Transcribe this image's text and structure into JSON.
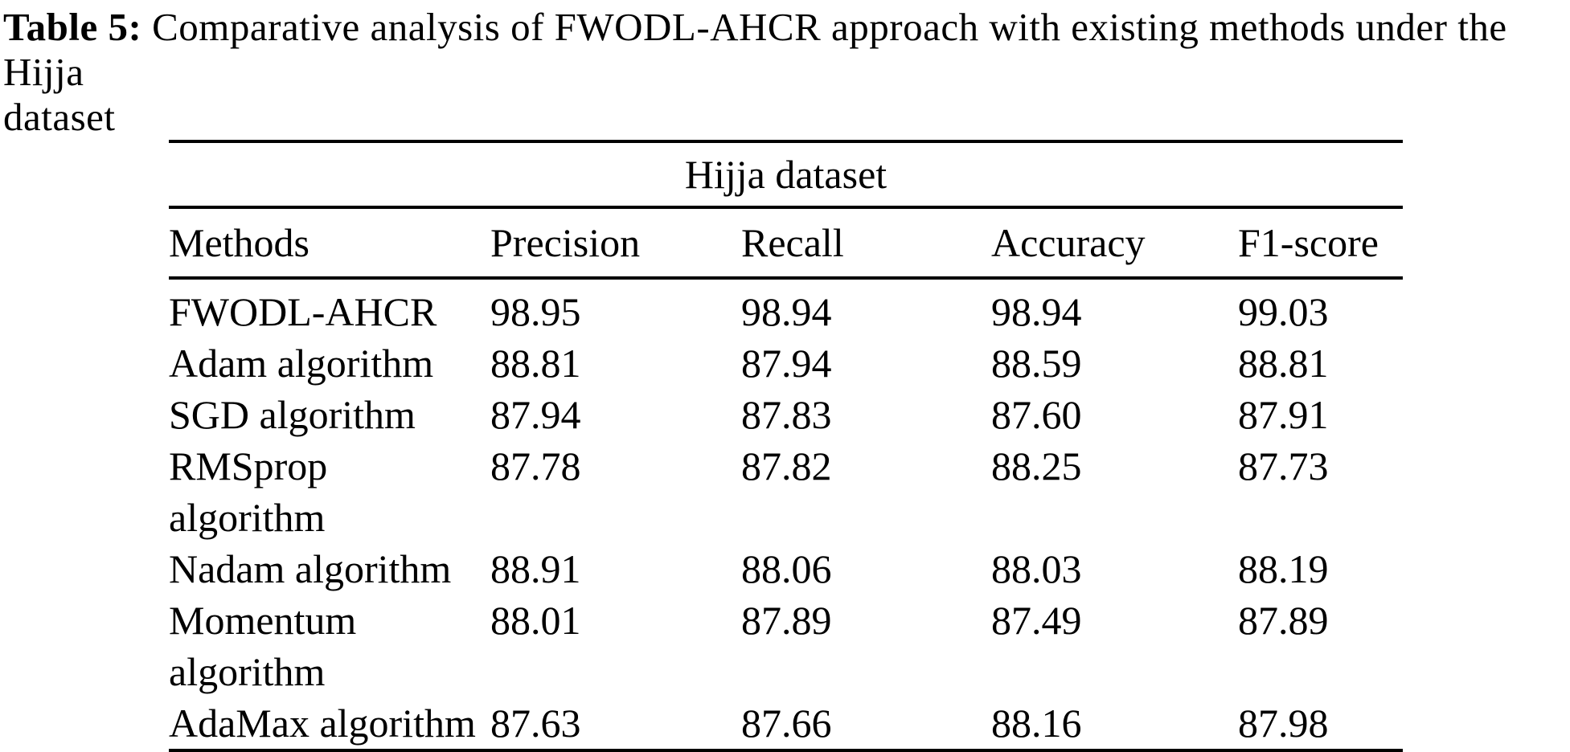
{
  "page": {
    "background": "#ffffff",
    "text_color": "#000000"
  },
  "caption": {
    "label": "Table 5:",
    "line1_rest": "Comparative analysis of FWODL-AHCR approach with existing methods under the Hijja",
    "line2": "dataset"
  },
  "table": {
    "group_header": "Hijja dataset",
    "columns": [
      "Methods",
      "Precision",
      "Recall",
      "Accuracy",
      "F1-score"
    ],
    "rows": [
      {
        "method": "FWODL-AHCR",
        "values": [
          "98.95",
          "98.94",
          "98.94",
          "99.03"
        ]
      },
      {
        "method": "Adam algorithm",
        "values": [
          "88.81",
          "87.94",
          "88.59",
          "88.81"
        ]
      },
      {
        "method": "SGD algorithm",
        "values": [
          "87.94",
          "87.83",
          "87.60",
          "87.91"
        ]
      },
      {
        "method": "RMSprop algorithm",
        "values": [
          "87.78",
          "87.82",
          "88.25",
          "87.73"
        ]
      },
      {
        "method": "Nadam algorithm",
        "values": [
          "88.91",
          "88.06",
          "88.03",
          "88.19"
        ]
      },
      {
        "method": "Momentum algorithm",
        "values": [
          "88.01",
          "87.89",
          "87.49",
          "87.89"
        ]
      },
      {
        "method": "AdaMax algorithm",
        "values": [
          "87.63",
          "87.66",
          "88.16",
          "87.98"
        ]
      }
    ]
  }
}
